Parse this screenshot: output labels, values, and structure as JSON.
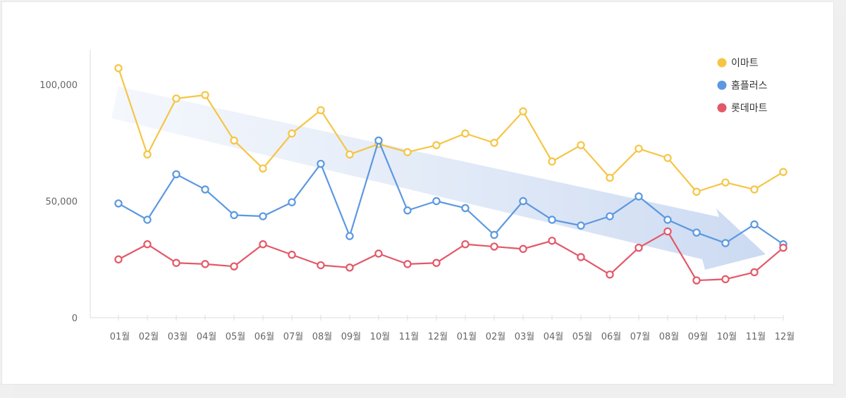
{
  "chart_data": {
    "type": "line",
    "categories": [
      "01월",
      "02월",
      "03월",
      "04월",
      "05월",
      "06월",
      "07월",
      "08월",
      "09월",
      "10월",
      "11월",
      "12월",
      "01월",
      "02월",
      "03월",
      "04월",
      "05월",
      "06월",
      "07월",
      "08월",
      "09월",
      "10월",
      "11월",
      "12월"
    ],
    "series": [
      {
        "name": "이마트",
        "color": "#f5c544",
        "values": [
          107000,
          70000,
          94000,
          95500,
          76000,
          64000,
          79000,
          89000,
          70000,
          74500,
          71000,
          74000,
          79000,
          75000,
          88500,
          67000,
          74000,
          60000,
          72500,
          68500,
          54000,
          58000,
          55000,
          62500
        ]
      },
      {
        "name": "홈플러스",
        "color": "#5b98e0",
        "values": [
          49000,
          42000,
          61500,
          55000,
          44000,
          43500,
          49500,
          66000,
          35000,
          76000,
          46000,
          50000,
          47000,
          35500,
          50000,
          42000,
          39500,
          43500,
          52000,
          42000,
          36500,
          32000,
          40000,
          31500
        ]
      },
      {
        "name": "롯데마트",
        "color": "#e35868",
        "values": [
          25000,
          31500,
          23500,
          23000,
          22000,
          31500,
          27000,
          22500,
          21500,
          27500,
          23000,
          23500,
          31500,
          30500,
          29500,
          33000,
          26000,
          18500,
          30000,
          37000,
          16000,
          16500,
          19500,
          30000
        ]
      }
    ],
    "yticks": [
      {
        "value": 0,
        "label": "0"
      },
      {
        "value": 50000,
        "label": "50,000"
      },
      {
        "value": 100000,
        "label": "100,000"
      }
    ],
    "ylim": [
      0,
      115000
    ],
    "grid": false,
    "legend_position": "top-right",
    "annotation": "downward-trend-arrow"
  }
}
